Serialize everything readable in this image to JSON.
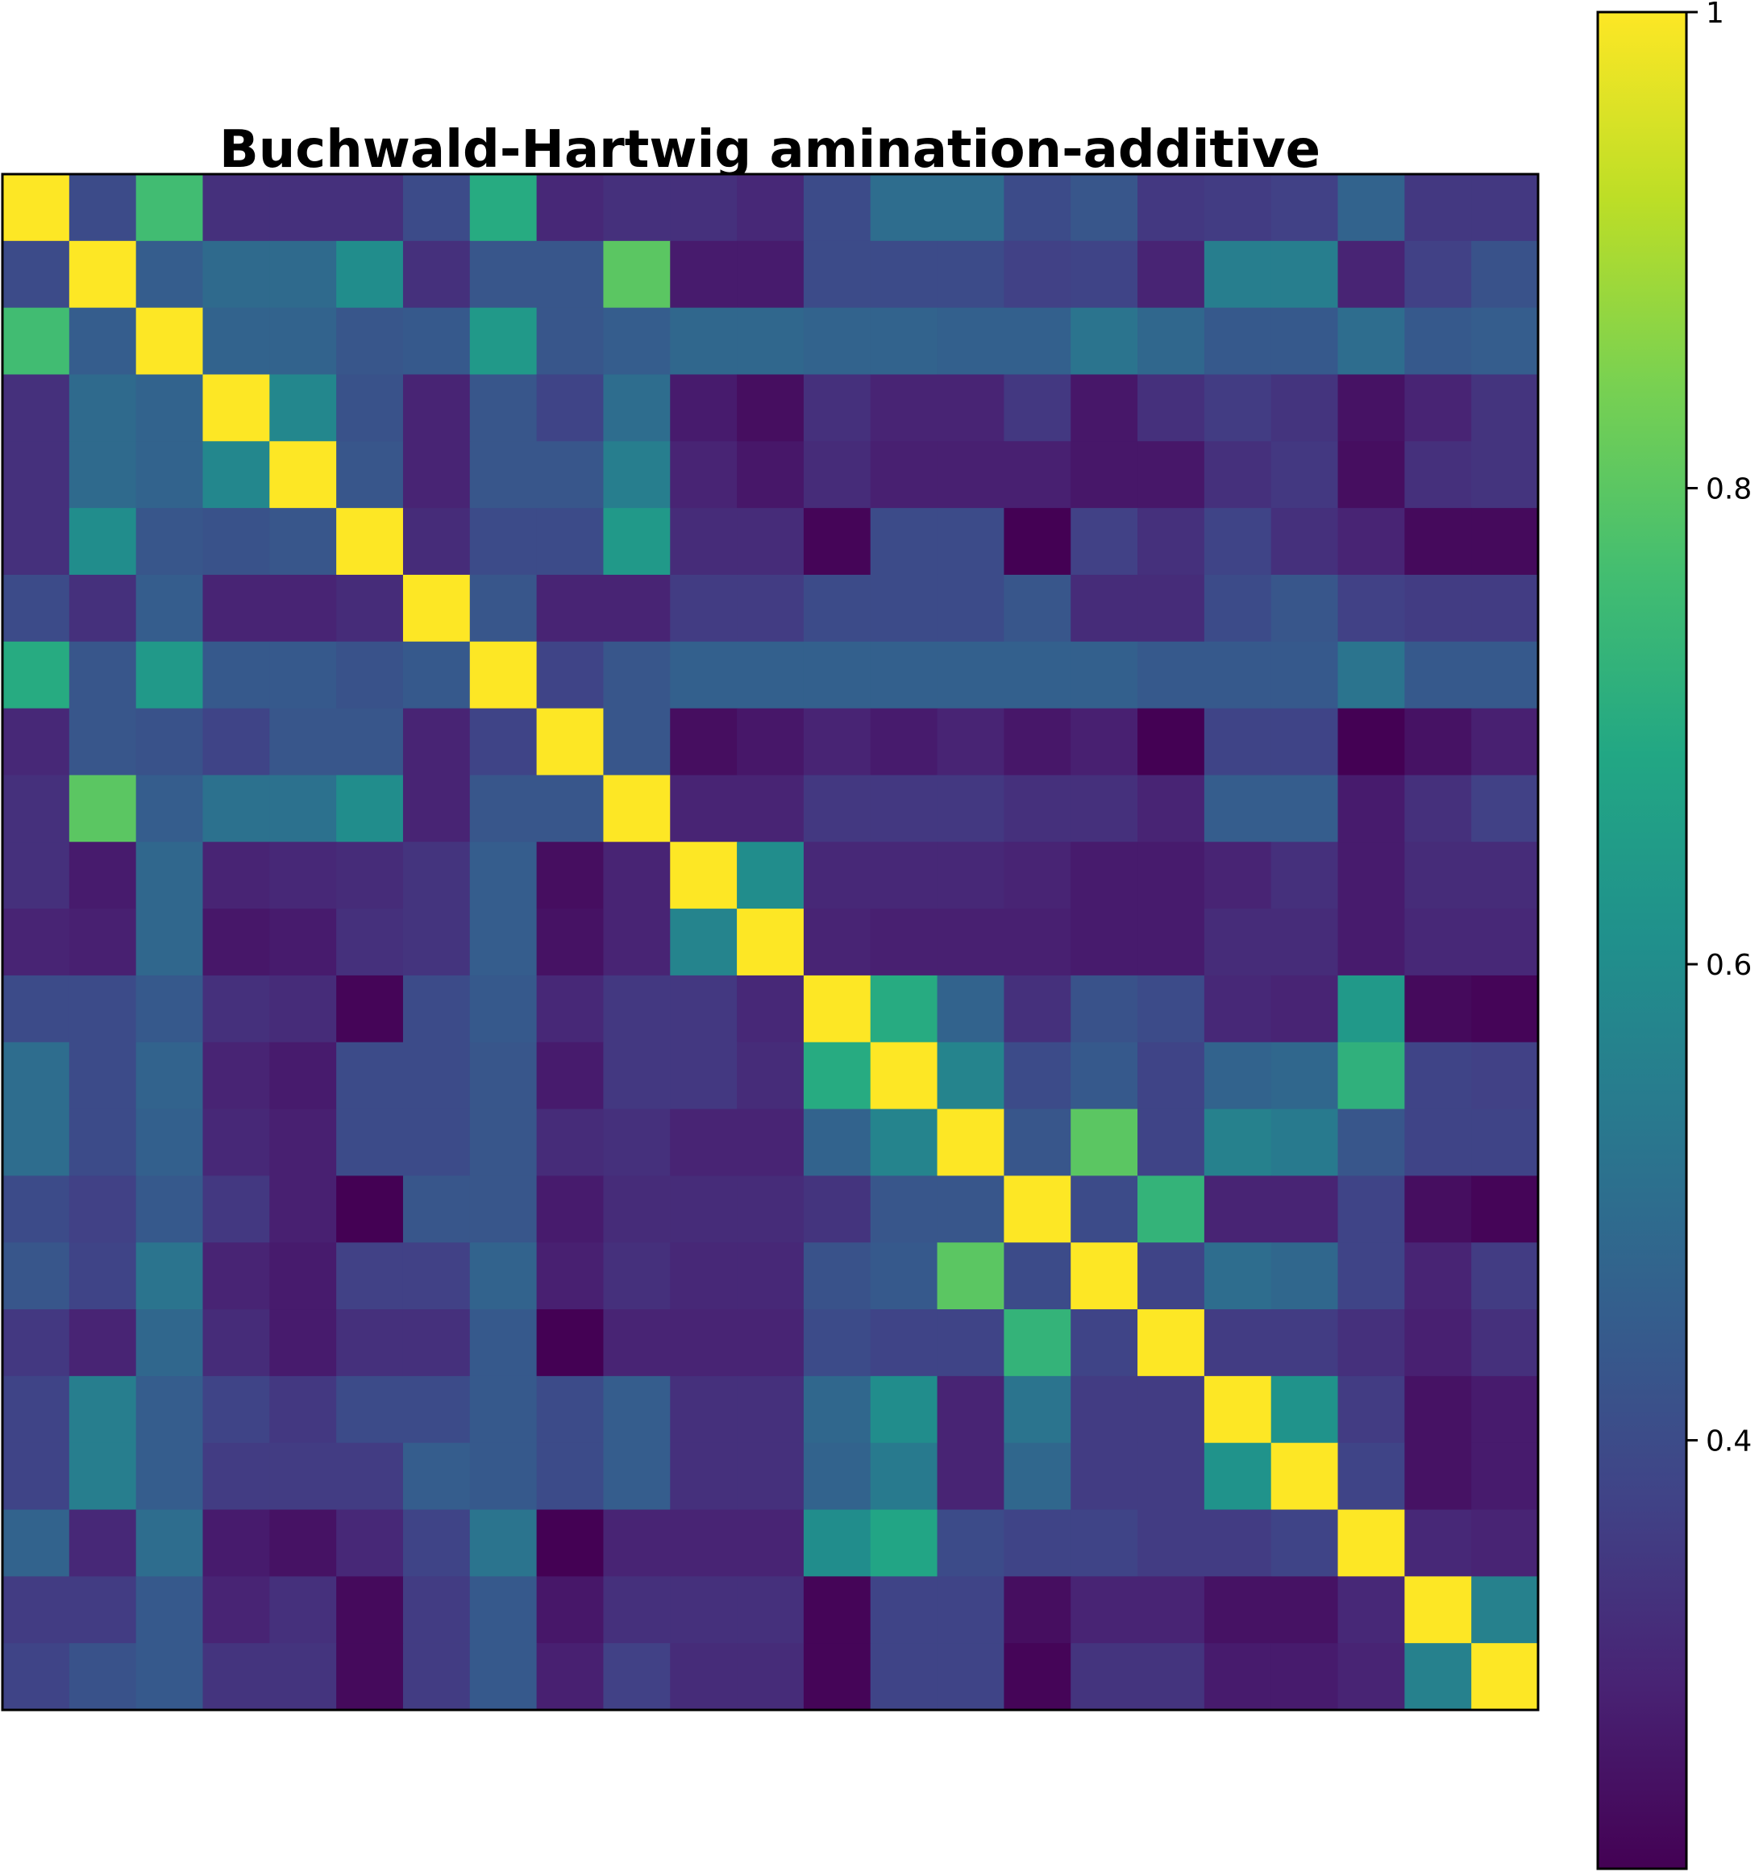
{
  "chart_data": {
    "type": "heatmap",
    "title": "Buchwald-Hartwig amination-additive",
    "xlabel": "",
    "ylabel": "",
    "rows": 23,
    "cols": 23,
    "xticks": [],
    "yticks": [],
    "colormap": "viridis",
    "colorbar": {
      "vmin": 0.22,
      "vmax": 1.0,
      "ticks": [
        0.4,
        0.6,
        0.8,
        1.0
      ],
      "tick_labels": [
        "0.4",
        "0.6",
        "0.8",
        "1"
      ]
    },
    "values": [
      [
        1.0,
        0.4,
        0.76,
        0.33,
        0.33,
        0.33,
        0.4,
        0.7,
        0.31,
        0.33,
        0.33,
        0.31,
        0.4,
        0.5,
        0.5,
        0.4,
        0.43,
        0.35,
        0.36,
        0.37,
        0.47,
        0.35,
        0.35
      ],
      [
        0.4,
        1.0,
        0.45,
        0.49,
        0.49,
        0.6,
        0.33,
        0.43,
        0.43,
        0.8,
        0.28,
        0.28,
        0.4,
        0.4,
        0.4,
        0.37,
        0.38,
        0.3,
        0.55,
        0.55,
        0.3,
        0.37,
        0.42
      ],
      [
        0.76,
        0.45,
        1.0,
        0.47,
        0.47,
        0.43,
        0.44,
        0.64,
        0.43,
        0.45,
        0.48,
        0.48,
        0.47,
        0.47,
        0.46,
        0.46,
        0.52,
        0.48,
        0.44,
        0.44,
        0.5,
        0.44,
        0.45
      ],
      [
        0.33,
        0.49,
        0.47,
        1.0,
        0.58,
        0.42,
        0.3,
        0.43,
        0.38,
        0.5,
        0.28,
        0.25,
        0.33,
        0.3,
        0.3,
        0.35,
        0.27,
        0.33,
        0.36,
        0.34,
        0.26,
        0.3,
        0.34
      ],
      [
        0.33,
        0.49,
        0.47,
        0.58,
        1.0,
        0.43,
        0.3,
        0.43,
        0.43,
        0.55,
        0.3,
        0.27,
        0.32,
        0.29,
        0.29,
        0.29,
        0.27,
        0.27,
        0.33,
        0.35,
        0.25,
        0.33,
        0.34
      ],
      [
        0.33,
        0.6,
        0.43,
        0.42,
        0.43,
        1.0,
        0.32,
        0.4,
        0.4,
        0.64,
        0.32,
        0.32,
        0.23,
        0.4,
        0.4,
        0.22,
        0.37,
        0.33,
        0.38,
        0.33,
        0.3,
        0.24,
        0.24
      ],
      [
        0.4,
        0.33,
        0.45,
        0.3,
        0.3,
        0.32,
        1.0,
        0.43,
        0.3,
        0.3,
        0.36,
        0.36,
        0.4,
        0.4,
        0.4,
        0.43,
        0.32,
        0.32,
        0.4,
        0.43,
        0.37,
        0.36,
        0.36
      ],
      [
        0.7,
        0.43,
        0.64,
        0.44,
        0.44,
        0.42,
        0.44,
        1.0,
        0.38,
        0.43,
        0.46,
        0.46,
        0.46,
        0.46,
        0.46,
        0.46,
        0.46,
        0.44,
        0.44,
        0.44,
        0.52,
        0.44,
        0.44
      ],
      [
        0.31,
        0.43,
        0.42,
        0.38,
        0.43,
        0.43,
        0.3,
        0.38,
        1.0,
        0.43,
        0.25,
        0.27,
        0.3,
        0.28,
        0.3,
        0.27,
        0.29,
        0.22,
        0.38,
        0.38,
        0.22,
        0.26,
        0.29
      ],
      [
        0.33,
        0.8,
        0.45,
        0.51,
        0.51,
        0.6,
        0.3,
        0.43,
        0.43,
        1.0,
        0.3,
        0.3,
        0.35,
        0.35,
        0.35,
        0.33,
        0.33,
        0.3,
        0.45,
        0.45,
        0.28,
        0.33,
        0.37
      ],
      [
        0.33,
        0.28,
        0.48,
        0.3,
        0.31,
        0.32,
        0.34,
        0.45,
        0.25,
        0.3,
        1.0,
        0.6,
        0.31,
        0.31,
        0.31,
        0.3,
        0.28,
        0.28,
        0.3,
        0.33,
        0.28,
        0.32,
        0.32
      ],
      [
        0.3,
        0.29,
        0.48,
        0.27,
        0.28,
        0.33,
        0.34,
        0.45,
        0.26,
        0.3,
        0.57,
        1.0,
        0.3,
        0.29,
        0.29,
        0.29,
        0.28,
        0.28,
        0.32,
        0.32,
        0.28,
        0.31,
        0.31
      ],
      [
        0.4,
        0.4,
        0.44,
        0.33,
        0.32,
        0.23,
        0.4,
        0.44,
        0.31,
        0.35,
        0.35,
        0.31,
        1.0,
        0.7,
        0.47,
        0.33,
        0.42,
        0.4,
        0.31,
        0.3,
        0.64,
        0.24,
        0.23
      ],
      [
        0.5,
        0.4,
        0.47,
        0.3,
        0.28,
        0.4,
        0.4,
        0.43,
        0.28,
        0.35,
        0.35,
        0.32,
        0.7,
        1.0,
        0.57,
        0.4,
        0.44,
        0.38,
        0.47,
        0.48,
        0.72,
        0.38,
        0.37
      ],
      [
        0.5,
        0.4,
        0.46,
        0.31,
        0.29,
        0.4,
        0.4,
        0.43,
        0.32,
        0.33,
        0.3,
        0.3,
        0.47,
        0.57,
        1.0,
        0.43,
        0.8,
        0.38,
        0.56,
        0.54,
        0.43,
        0.38,
        0.38
      ],
      [
        0.4,
        0.37,
        0.44,
        0.35,
        0.29,
        0.22,
        0.43,
        0.43,
        0.28,
        0.32,
        0.32,
        0.32,
        0.34,
        0.43,
        0.43,
        1.0,
        0.4,
        0.73,
        0.3,
        0.3,
        0.38,
        0.25,
        0.23
      ],
      [
        0.43,
        0.38,
        0.52,
        0.3,
        0.28,
        0.37,
        0.37,
        0.47,
        0.29,
        0.33,
        0.31,
        0.31,
        0.42,
        0.44,
        0.8,
        0.4,
        1.0,
        0.38,
        0.5,
        0.48,
        0.38,
        0.3,
        0.36
      ],
      [
        0.35,
        0.3,
        0.48,
        0.32,
        0.28,
        0.33,
        0.33,
        0.44,
        0.22,
        0.3,
        0.3,
        0.3,
        0.4,
        0.38,
        0.38,
        0.73,
        0.38,
        1.0,
        0.36,
        0.36,
        0.33,
        0.29,
        0.33
      ],
      [
        0.38,
        0.55,
        0.45,
        0.38,
        0.35,
        0.4,
        0.4,
        0.44,
        0.4,
        0.45,
        0.33,
        0.33,
        0.48,
        0.6,
        0.3,
        0.52,
        0.36,
        0.36,
        1.0,
        0.62,
        0.36,
        0.26,
        0.28
      ],
      [
        0.38,
        0.55,
        0.45,
        0.36,
        0.36,
        0.36,
        0.45,
        0.44,
        0.4,
        0.45,
        0.33,
        0.33,
        0.47,
        0.54,
        0.3,
        0.48,
        0.36,
        0.36,
        0.62,
        1.0,
        0.38,
        0.26,
        0.28
      ],
      [
        0.47,
        0.31,
        0.5,
        0.28,
        0.26,
        0.31,
        0.38,
        0.52,
        0.22,
        0.3,
        0.3,
        0.3,
        0.6,
        0.68,
        0.4,
        0.38,
        0.38,
        0.36,
        0.36,
        0.38,
        1.0,
        0.31,
        0.3
      ],
      [
        0.36,
        0.36,
        0.44,
        0.3,
        0.33,
        0.24,
        0.36,
        0.44,
        0.27,
        0.33,
        0.33,
        0.33,
        0.23,
        0.38,
        0.38,
        0.25,
        0.3,
        0.3,
        0.26,
        0.26,
        0.31,
        1.0,
        0.56
      ],
      [
        0.38,
        0.42,
        0.44,
        0.34,
        0.34,
        0.24,
        0.36,
        0.44,
        0.29,
        0.37,
        0.32,
        0.32,
        0.23,
        0.38,
        0.38,
        0.23,
        0.34,
        0.34,
        0.28,
        0.28,
        0.3,
        0.56,
        1.0
      ]
    ]
  }
}
